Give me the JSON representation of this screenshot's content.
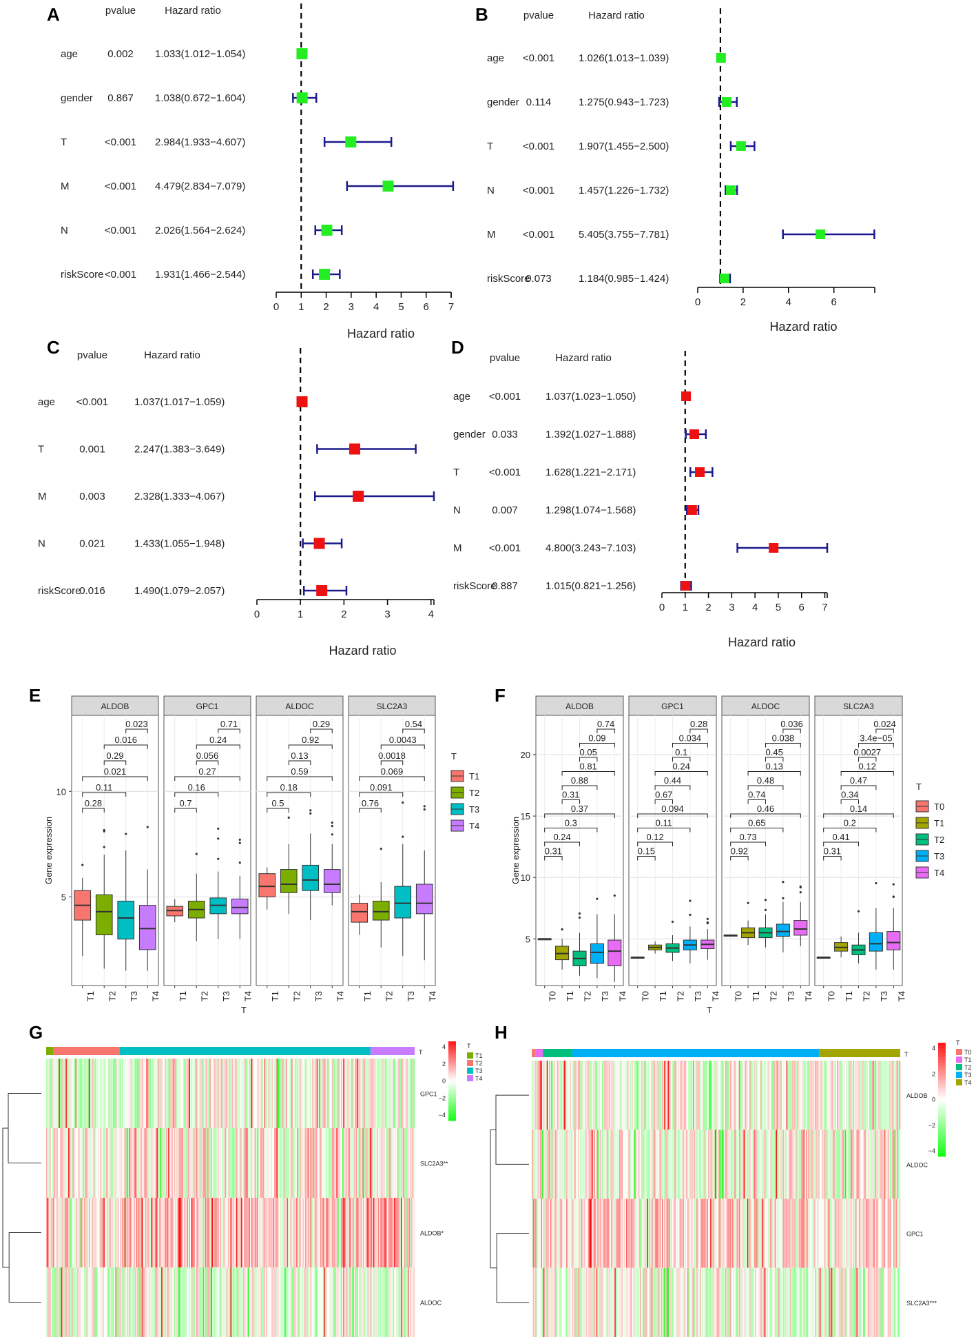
{
  "figure_labels": [
    "A",
    "B",
    "C",
    "D",
    "E",
    "F",
    "G",
    "H"
  ],
  "forest": {
    "header_pvalue": "pvalue",
    "header_hr": "Hazard ratio",
    "xlabel": "Hazard ratio",
    "colors": {
      "ci": "#1a1a8c",
      "green": "#22ee22",
      "red": "#ee1111"
    }
  },
  "expr": {
    "ylabel": "Gene expression",
    "xlabel": "T",
    "legend_title": "T",
    "colors": {
      "T0": "#f8766d",
      "T1": "#a3a500",
      "T2": "#00bf7d",
      "T3": "#00b0f6",
      "T4": "#e76bf3",
      "E_T1": "#f8766d",
      "E_T2": "#7cae00",
      "E_T3": "#00bfc4",
      "E_T4": "#c77cff"
    }
  },
  "heat": {
    "legend_title": "T",
    "colors": {
      "high": "#ff1a1a",
      "mid": "#ffffff",
      "low": "#1ae61a"
    }
  },
  "chart_data": [
    {
      "panel": "A",
      "type": "forest",
      "rows": [
        {
          "label": "age",
          "pvalue": "0.002",
          "hr_text": "1.033(1.012−1.054)",
          "hr": 1.033,
          "lo": 1.012,
          "hi": 1.054
        },
        {
          "label": "gender",
          "pvalue": "0.867",
          "hr_text": "1.038(0.672−1.604)",
          "hr": 1.038,
          "lo": 0.672,
          "hi": 1.604
        },
        {
          "label": "T",
          "pvalue": "<0.001",
          "hr_text": "2.984(1.933−4.607)",
          "hr": 2.984,
          "lo": 1.933,
          "hi": 4.607
        },
        {
          "label": "M",
          "pvalue": "<0.001",
          "hr_text": "4.479(2.834−7.079)",
          "hr": 4.479,
          "lo": 2.834,
          "hi": 7.079
        },
        {
          "label": "N",
          "pvalue": "<0.001",
          "hr_text": "2.026(1.564−2.624)",
          "hr": 2.026,
          "lo": 1.564,
          "hi": 2.624
        },
        {
          "label": "riskScore",
          "pvalue": "<0.001",
          "hr_text": "1.931(1.466−2.544)",
          "hr": 1.931,
          "lo": 1.466,
          "hi": 2.544
        }
      ],
      "xlim": [
        0,
        7
      ],
      "ticks": [
        0,
        1,
        2,
        3,
        4,
        5,
        6,
        7
      ],
      "marker": "green",
      "xlabel": "Hazard ratio"
    },
    {
      "panel": "B",
      "type": "forest",
      "rows": [
        {
          "label": "age",
          "pvalue": "<0.001",
          "hr_text": "1.026(1.013−1.039)",
          "hr": 1.026,
          "lo": 1.013,
          "hi": 1.039
        },
        {
          "label": "gender",
          "pvalue": "0.114",
          "hr_text": "1.275(0.943−1.723)",
          "hr": 1.275,
          "lo": 0.943,
          "hi": 1.723
        },
        {
          "label": "T",
          "pvalue": "<0.001",
          "hr_text": "1.907(1.455−2.500)",
          "hr": 1.907,
          "lo": 1.455,
          "hi": 2.5
        },
        {
          "label": "N",
          "pvalue": "<0.001",
          "hr_text": "1.457(1.226−1.732)",
          "hr": 1.457,
          "lo": 1.226,
          "hi": 1.732
        },
        {
          "label": "M",
          "pvalue": "<0.001",
          "hr_text": "5.405(3.755−7.781)",
          "hr": 5.405,
          "lo": 3.755,
          "hi": 7.781
        },
        {
          "label": "riskScore",
          "pvalue": "0.073",
          "hr_text": "1.184(0.985−1.424)",
          "hr": 1.184,
          "lo": 0.985,
          "hi": 1.424
        }
      ],
      "xlim": [
        0,
        7.8
      ],
      "ticks": [
        0,
        2,
        4,
        6
      ],
      "marker": "green",
      "xlabel": "Hazard ratio"
    },
    {
      "panel": "C",
      "type": "forest",
      "rows": [
        {
          "label": "age",
          "pvalue": "<0.001",
          "hr_text": "1.037(1.017−1.059)",
          "hr": 1.037,
          "lo": 1.017,
          "hi": 1.059
        },
        {
          "label": "T",
          "pvalue": "0.001",
          "hr_text": "2.247(1.383−3.649)",
          "hr": 2.247,
          "lo": 1.383,
          "hi": 3.649
        },
        {
          "label": "M",
          "pvalue": "0.003",
          "hr_text": "2.328(1.333−4.067)",
          "hr": 2.328,
          "lo": 1.333,
          "hi": 4.067
        },
        {
          "label": "N",
          "pvalue": "0.021",
          "hr_text": "1.433(1.055−1.948)",
          "hr": 1.433,
          "lo": 1.055,
          "hi": 1.948
        },
        {
          "label": "riskScore",
          "pvalue": "0.016",
          "hr_text": "1.490(1.079−2.057)",
          "hr": 1.49,
          "lo": 1.079,
          "hi": 2.057
        }
      ],
      "xlim": [
        0,
        4.067
      ],
      "ticks": [
        0,
        1,
        2,
        3,
        4
      ],
      "marker": "red",
      "xlabel": "Hazard ratio"
    },
    {
      "panel": "D",
      "type": "forest",
      "rows": [
        {
          "label": "age",
          "pvalue": "<0.001",
          "hr_text": "1.037(1.023−1.050)",
          "hr": 1.037,
          "lo": 1.023,
          "hi": 1.05
        },
        {
          "label": "gender",
          "pvalue": "0.033",
          "hr_text": "1.392(1.027−1.888)",
          "hr": 1.392,
          "lo": 1.027,
          "hi": 1.888
        },
        {
          "label": "T",
          "pvalue": "<0.001",
          "hr_text": "1.628(1.221−2.171)",
          "hr": 1.628,
          "lo": 1.221,
          "hi": 2.171
        },
        {
          "label": "N",
          "pvalue": "0.007",
          "hr_text": "1.298(1.074−1.568)",
          "hr": 1.298,
          "lo": 1.074,
          "hi": 1.568
        },
        {
          "label": "M",
          "pvalue": "<0.001",
          "hr_text": "4.800(3.243−7.103)",
          "hr": 4.8,
          "lo": 3.243,
          "hi": 7.103
        },
        {
          "label": "riskScore",
          "pvalue": "0.887",
          "hr_text": "1.015(0.821−1.256)",
          "hr": 1.015,
          "lo": 0.821,
          "hi": 1.256
        }
      ],
      "xlim": [
        0,
        7.103
      ],
      "ticks": [
        0,
        1,
        2,
        3,
        4,
        5,
        6,
        7
      ],
      "marker": "red",
      "xlabel": "Hazard ratio"
    },
    {
      "panel": "E",
      "type": "box",
      "ylabel": "Gene expression",
      "xlabel": "T",
      "ylim": [
        0.8,
        13.6
      ],
      "yticks": [
        5,
        10
      ],
      "groups": [
        "T1",
        "T2",
        "T3",
        "T4"
      ],
      "legend_title": "T",
      "legend": [
        "T1",
        "T2",
        "T3",
        "T4"
      ],
      "facets": [
        {
          "name": "ALDOB",
          "pvals": [
            "0.023",
            "0.016",
            "0.29",
            "0.021",
            "0.11",
            "0.28"
          ],
          "boxes": [
            {
              "q1": 3.9,
              "med": 4.6,
              "q3": 5.3,
              "lo": 2.2,
              "hi": 5.9
            },
            {
              "q1": 3.2,
              "med": 4.3,
              "q3": 5.1,
              "lo": 1.6,
              "hi": 7.0
            },
            {
              "q1": 3.0,
              "med": 4.0,
              "q3": 4.8,
              "lo": 1.5,
              "hi": 7.2
            },
            {
              "q1": 2.5,
              "med": 3.5,
              "q3": 4.6,
              "lo": 1.5,
              "hi": 6.3
            }
          ]
        },
        {
          "name": "GPC1",
          "pvals": [
            "0.71",
            "0.24",
            "0.056",
            "0.27",
            "0.16",
            "0.7"
          ],
          "boxes": [
            {
              "q1": 4.1,
              "med": 4.35,
              "q3": 4.55,
              "lo": 3.8,
              "hi": 4.9
            },
            {
              "q1": 4.0,
              "med": 4.4,
              "q3": 4.8,
              "lo": 2.9,
              "hi": 6.1
            },
            {
              "q1": 4.2,
              "med": 4.6,
              "q3": 4.95,
              "lo": 3.0,
              "hi": 6.2
            },
            {
              "q1": 4.2,
              "med": 4.5,
              "q3": 4.9,
              "lo": 3.0,
              "hi": 6.0
            }
          ]
        },
        {
          "name": "ALDOC",
          "pvals": [
            "0.29",
            "0.92",
            "0.13",
            "0.59",
            "0.18",
            "0.5"
          ],
          "boxes": [
            {
              "q1": 5.0,
              "med": 5.5,
              "q3": 6.1,
              "lo": 4.4,
              "hi": 6.4
            },
            {
              "q1": 5.2,
              "med": 5.6,
              "q3": 6.3,
              "lo": 4.2,
              "hi": 7.5
            },
            {
              "q1": 5.3,
              "med": 5.8,
              "q3": 6.5,
              "lo": 3.9,
              "hi": 8.0
            },
            {
              "q1": 5.2,
              "med": 5.6,
              "q3": 6.3,
              "lo": 4.6,
              "hi": 7.5
            }
          ]
        },
        {
          "name": "SLC2A3",
          "pvals": [
            "0.54",
            "0.0043",
            "0.0018",
            "0.069",
            "0.091",
            "0.76"
          ],
          "boxes": [
            {
              "q1": 3.8,
              "med": 4.3,
              "q3": 4.7,
              "lo": 3.2,
              "hi": 5.1
            },
            {
              "q1": 3.9,
              "med": 4.3,
              "q3": 4.8,
              "lo": 2.6,
              "hi": 5.7
            },
            {
              "q1": 4.0,
              "med": 4.7,
              "q3": 5.5,
              "lo": 2.2,
              "hi": 7.5
            },
            {
              "q1": 4.2,
              "med": 4.7,
              "q3": 5.6,
              "lo": 2.0,
              "hi": 7.2
            }
          ]
        }
      ]
    },
    {
      "panel": "F",
      "type": "box",
      "ylabel": "Gene expression",
      "xlabel": "T",
      "ylim": [
        1.2,
        23.2
      ],
      "yticks": [
        5,
        10,
        15,
        20
      ],
      "groups": [
        "T0",
        "T1",
        "T2",
        "T3",
        "T4"
      ],
      "legend_title": "T",
      "legend": [
        "T0",
        "T1",
        "T2",
        "T3",
        "T4"
      ],
      "facets": [
        {
          "name": "ALDOB",
          "pvals": [
            "0.74",
            "0.09",
            "0.05",
            "0.81",
            "0.88",
            "0.31",
            "0.37",
            "0.3",
            "0.24",
            "0.31"
          ],
          "boxes": [
            {
              "q1": 5.0,
              "med": 5.0,
              "q3": 5.0,
              "lo": 5.0,
              "hi": 5.0
            },
            {
              "q1": 3.3,
              "med": 3.8,
              "q3": 4.4,
              "lo": 2.5,
              "hi": 5.0
            },
            {
              "q1": 2.8,
              "med": 3.4,
              "q3": 4.0,
              "lo": 2.0,
              "hi": 5.5
            },
            {
              "q1": 3.0,
              "med": 3.9,
              "q3": 4.6,
              "lo": 1.8,
              "hi": 7.0
            },
            {
              "q1": 2.8,
              "med": 4.0,
              "q3": 4.9,
              "lo": 1.5,
              "hi": 7.0
            }
          ]
        },
        {
          "name": "GPC1",
          "pvals": [
            "0.28",
            "0.034",
            "0.1",
            "0.24",
            "0.44",
            "0.67",
            "0.094",
            "0.11",
            "0.12",
            "0.15"
          ],
          "boxes": [
            {
              "q1": 3.5,
              "med": 3.5,
              "q3": 3.5,
              "lo": 3.5,
              "hi": 3.5
            },
            {
              "q1": 4.1,
              "med": 4.3,
              "q3": 4.5,
              "lo": 3.8,
              "hi": 4.8
            },
            {
              "q1": 3.9,
              "med": 4.25,
              "q3": 4.6,
              "lo": 3.2,
              "hi": 5.3
            },
            {
              "q1": 4.1,
              "med": 4.5,
              "q3": 4.9,
              "lo": 3.0,
              "hi": 6.0
            },
            {
              "q1": 4.2,
              "med": 4.55,
              "q3": 4.9,
              "lo": 3.3,
              "hi": 5.8
            }
          ]
        },
        {
          "name": "ALDOC",
          "pvals": [
            "0.036",
            "0.038",
            "0.45",
            "0.13",
            "0.48",
            "0.74",
            "0.46",
            "0.65",
            "0.73",
            "0.92"
          ],
          "boxes": [
            {
              "q1": 5.3,
              "med": 5.3,
              "q3": 5.3,
              "lo": 5.3,
              "hi": 5.3
            },
            {
              "q1": 5.1,
              "med": 5.5,
              "q3": 5.9,
              "lo": 4.5,
              "hi": 6.5
            },
            {
              "q1": 5.1,
              "med": 5.5,
              "q3": 5.9,
              "lo": 4.3,
              "hi": 7.0
            },
            {
              "q1": 5.2,
              "med": 5.6,
              "q3": 6.2,
              "lo": 3.9,
              "hi": 8.0
            },
            {
              "q1": 5.3,
              "med": 5.8,
              "q3": 6.5,
              "lo": 4.4,
              "hi": 8.0
            }
          ]
        },
        {
          "name": "SLC2A3",
          "pvals": [
            "0.024",
            "3.4e−05",
            "0.0027",
            "0.12",
            "0.47",
            "0.34",
            "0.14",
            "0.2",
            "0.41",
            "0.31"
          ],
          "boxes": [
            {
              "q1": 3.5,
              "med": 3.5,
              "q3": 3.5,
              "lo": 3.5,
              "hi": 3.5
            },
            {
              "q1": 4.0,
              "med": 4.3,
              "q3": 4.7,
              "lo": 3.5,
              "hi": 5.2
            },
            {
              "q1": 3.7,
              "med": 4.1,
              "q3": 4.5,
              "lo": 3.0,
              "hi": 5.5
            },
            {
              "q1": 4.0,
              "med": 4.6,
              "q3": 5.5,
              "lo": 2.5,
              "hi": 7.5
            },
            {
              "q1": 4.1,
              "med": 4.7,
              "q3": 5.6,
              "lo": 2.5,
              "hi": 7.5
            }
          ]
        }
      ]
    },
    {
      "panel": "G",
      "type": "heatmap",
      "rows": [
        "GPC1",
        "SLC2A3**",
        "ALDOB*",
        "ALDOC"
      ],
      "annotation_label": "T",
      "annotation": [
        {
          "group": "T1",
          "fraction": 0.02
        },
        {
          "group": "T2",
          "fraction": 0.18
        },
        {
          "group": "T3",
          "fraction": 0.68
        },
        {
          "group": "T4",
          "fraction": 0.12
        }
      ],
      "legend": [
        "T1",
        "T2",
        "T3",
        "T4"
      ],
      "legend_colors": {
        "T1": "#7cae00",
        "T2": "#f8766d",
        "T3": "#00bfc4",
        "T4": "#c77cff"
      },
      "scale_ticks": [
        "4",
        "2",
        "0",
        "−2",
        "−4"
      ]
    },
    {
      "panel": "H",
      "type": "heatmap",
      "rows": [
        "ALDOB",
        "ALDOC",
        "GPC1",
        "SLC2A3***"
      ],
      "annotation_label": "T",
      "annotation": [
        {
          "group": "T0",
          "fraction": 0.01
        },
        {
          "group": "T1",
          "fraction": 0.02
        },
        {
          "group": "T2",
          "fraction": 0.08
        },
        {
          "group": "T3",
          "fraction": 0.67
        },
        {
          "group": "T4",
          "fraction": 0.22
        }
      ],
      "legend": [
        "T0",
        "T1",
        "T2",
        "T3",
        "T4"
      ],
      "legend_colors": {
        "T0": "#f8766d",
        "T1": "#e76bf3",
        "T2": "#00bf7d",
        "T3": "#00b0f6",
        "T4": "#a3a500"
      },
      "scale_ticks": [
        "4",
        "2",
        "0",
        "−2",
        "−4"
      ]
    }
  ]
}
